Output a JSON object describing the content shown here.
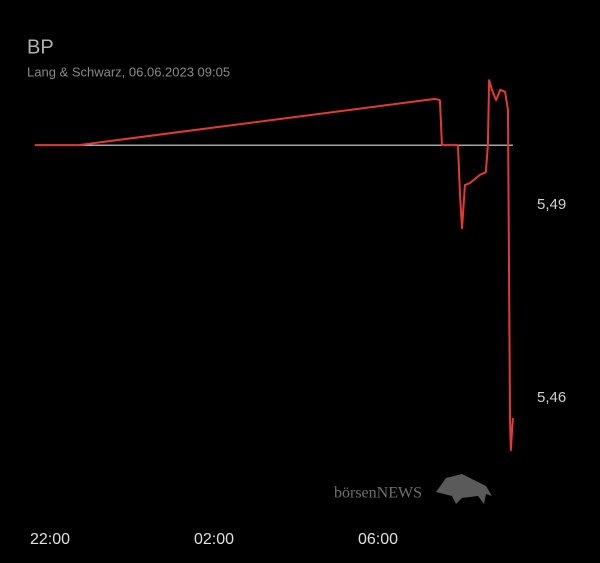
{
  "chart_data": {
    "type": "line",
    "title": "BP",
    "subtitle": "Lang & Schwarz, 06.06.2023 09:05",
    "watermark": "börsenNEWS",
    "x": [
      21.63,
      22.68,
      31.39,
      31.51,
      31.56,
      31.95,
      32.0,
      32.05,
      32.12,
      32.24,
      32.49,
      32.63,
      32.68,
      32.71,
      32.78,
      32.88,
      32.98,
      33.1,
      33.17,
      33.22,
      33.24,
      33.29
    ],
    "series": [
      {
        "color": "#e53935",
        "values": [
          5.4993,
          5.4993,
          5.5065,
          5.5063,
          5.4993,
          5.4993,
          5.4916,
          5.4864,
          5.4931,
          5.4934,
          5.4947,
          5.4951,
          5.4993,
          5.5094,
          5.5079,
          5.5063,
          5.5079,
          5.5076,
          5.5048,
          5.4566,
          5.4519,
          5.4569
        ]
      }
    ],
    "reference": 5.4993,
    "reference_color": "#dddddd",
    "xlim": [
      21.6,
      33.3
    ],
    "xticks": [
      {
        "value": 22,
        "label": "22:00"
      },
      {
        "value": 26,
        "label": "02:00"
      },
      {
        "value": 30,
        "label": "06:00"
      }
    ],
    "ylim": [
      5.44,
      5.515
    ],
    "yticks": [
      {
        "value": 5.46,
        "label": "5,46"
      },
      {
        "value": 5.49,
        "label": "5,49"
      }
    ]
  }
}
